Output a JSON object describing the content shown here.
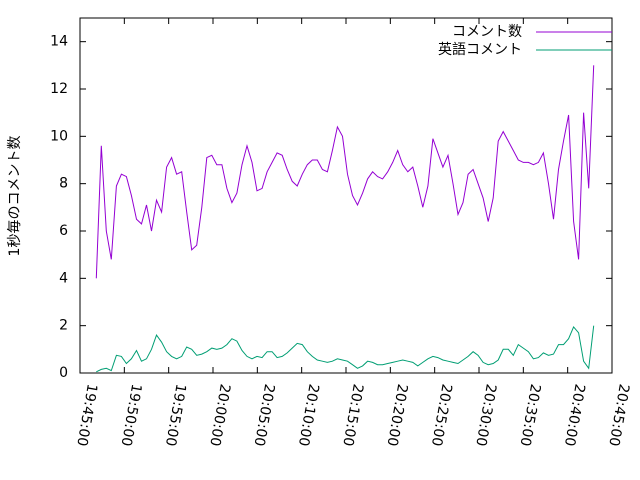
{
  "chart_data": {
    "type": "line",
    "y_label": "1秒毎のコメント数",
    "x": [
      110,
      144,
      178,
      212,
      246,
      280,
      314,
      348,
      382,
      416,
      450,
      484,
      518,
      552,
      586,
      620,
      654,
      688,
      722,
      756,
      790,
      824,
      858,
      892,
      926,
      960,
      994,
      1028,
      1062,
      1096,
      1130,
      1164,
      1198,
      1232,
      1266,
      1300,
      1334,
      1368,
      1402,
      1436,
      1470,
      1504,
      1538,
      1572,
      1606,
      1640,
      1674,
      1708,
      1742,
      1776,
      1810,
      1844,
      1878,
      1912,
      1946,
      1980,
      2014,
      2048,
      2082,
      2116,
      2150,
      2184,
      2218,
      2252,
      2286,
      2320,
      2354,
      2388,
      2422,
      2456,
      2490,
      2524,
      2558,
      2592,
      2626,
      2660,
      2694,
      2728,
      2762,
      2796,
      2830,
      2864,
      2898,
      2932,
      2966,
      3000,
      3034,
      3068,
      3102,
      3136,
      3170,
      3204,
      3238,
      3272,
      3306,
      3340,
      3374,
      3408,
      3442,
      3476
    ],
    "series": [
      {
        "name": "コメント数",
        "color": "#9400d3",
        "values": [
          4.0,
          9.6,
          6.0,
          4.8,
          7.9,
          8.4,
          8.3,
          7.5,
          6.5,
          6.3,
          7.1,
          6.0,
          7.3,
          6.8,
          8.7,
          9.1,
          8.4,
          8.5,
          6.8,
          5.2,
          5.4,
          7.0,
          9.1,
          9.2,
          8.8,
          8.8,
          7.8,
          7.2,
          7.6,
          8.8,
          9.6,
          8.9,
          7.7,
          7.8,
          8.5,
          8.9,
          9.3,
          9.2,
          8.6,
          8.1,
          7.9,
          8.4,
          8.8,
          9.0,
          9.0,
          8.6,
          8.5,
          9.4,
          10.4,
          10.0,
          8.4,
          7.5,
          7.1,
          7.6,
          8.2,
          8.5,
          8.3,
          8.2,
          8.5,
          8.9,
          9.4,
          8.8,
          8.5,
          8.7,
          7.9,
          7.0,
          7.9,
          9.9,
          9.3,
          8.7,
          9.2,
          8.0,
          6.7,
          7.2,
          8.4,
          8.6,
          8.0,
          7.4,
          6.4,
          7.4,
          9.8,
          10.2,
          9.8,
          9.4,
          9.0,
          8.9,
          8.9,
          8.8,
          8.9,
          9.3,
          8.0,
          6.5,
          8.6,
          9.8,
          10.9,
          6.4,
          4.8,
          11.0,
          7.8,
          13.0
        ]
      },
      {
        "name": "英語コメント",
        "color": "#009e73",
        "values": [
          0.05,
          0.15,
          0.2,
          0.1,
          0.75,
          0.7,
          0.4,
          0.6,
          0.95,
          0.5,
          0.6,
          1.0,
          1.6,
          1.3,
          0.9,
          0.7,
          0.6,
          0.7,
          1.1,
          1.0,
          0.75,
          0.8,
          0.9,
          1.05,
          1.0,
          1.05,
          1.2,
          1.45,
          1.35,
          0.95,
          0.7,
          0.6,
          0.7,
          0.65,
          0.9,
          0.9,
          0.65,
          0.7,
          0.85,
          1.05,
          1.25,
          1.2,
          0.9,
          0.7,
          0.55,
          0.5,
          0.45,
          0.5,
          0.6,
          0.55,
          0.5,
          0.35,
          0.2,
          0.3,
          0.5,
          0.45,
          0.35,
          0.35,
          0.4,
          0.45,
          0.5,
          0.55,
          0.5,
          0.45,
          0.3,
          0.45,
          0.6,
          0.7,
          0.65,
          0.55,
          0.5,
          0.45,
          0.4,
          0.55,
          0.7,
          0.9,
          0.75,
          0.45,
          0.35,
          0.4,
          0.55,
          1.0,
          1.0,
          0.75,
          1.2,
          1.05,
          0.9,
          0.6,
          0.65,
          0.85,
          0.75,
          0.8,
          1.2,
          1.2,
          1.45,
          1.95,
          1.7,
          0.5,
          0.2,
          2.0
        ]
      }
    ],
    "xlim": [
      0,
      3600
    ],
    "xticks": [
      {
        "value": 0,
        "label": "19:45:00"
      },
      {
        "value": 300,
        "label": "19:50:00"
      },
      {
        "value": 600,
        "label": "19:55:00"
      },
      {
        "value": 900,
        "label": "20:00:00"
      },
      {
        "value": 1200,
        "label": "20:05:00"
      },
      {
        "value": 1500,
        "label": "20:10:00"
      },
      {
        "value": 1800,
        "label": "20:15:00"
      },
      {
        "value": 2100,
        "label": "20:20:00"
      },
      {
        "value": 2400,
        "label": "20:25:00"
      },
      {
        "value": 2700,
        "label": "20:30:00"
      },
      {
        "value": 3000,
        "label": "20:35:00"
      },
      {
        "value": 3300,
        "label": "20:40:00"
      },
      {
        "value": 3600,
        "label": "20:45:00"
      }
    ],
    "ylim": [
      0,
      15
    ],
    "yticks": [
      0,
      2,
      4,
      6,
      8,
      10,
      12,
      14
    ],
    "grid": false,
    "legend": "top-right"
  }
}
